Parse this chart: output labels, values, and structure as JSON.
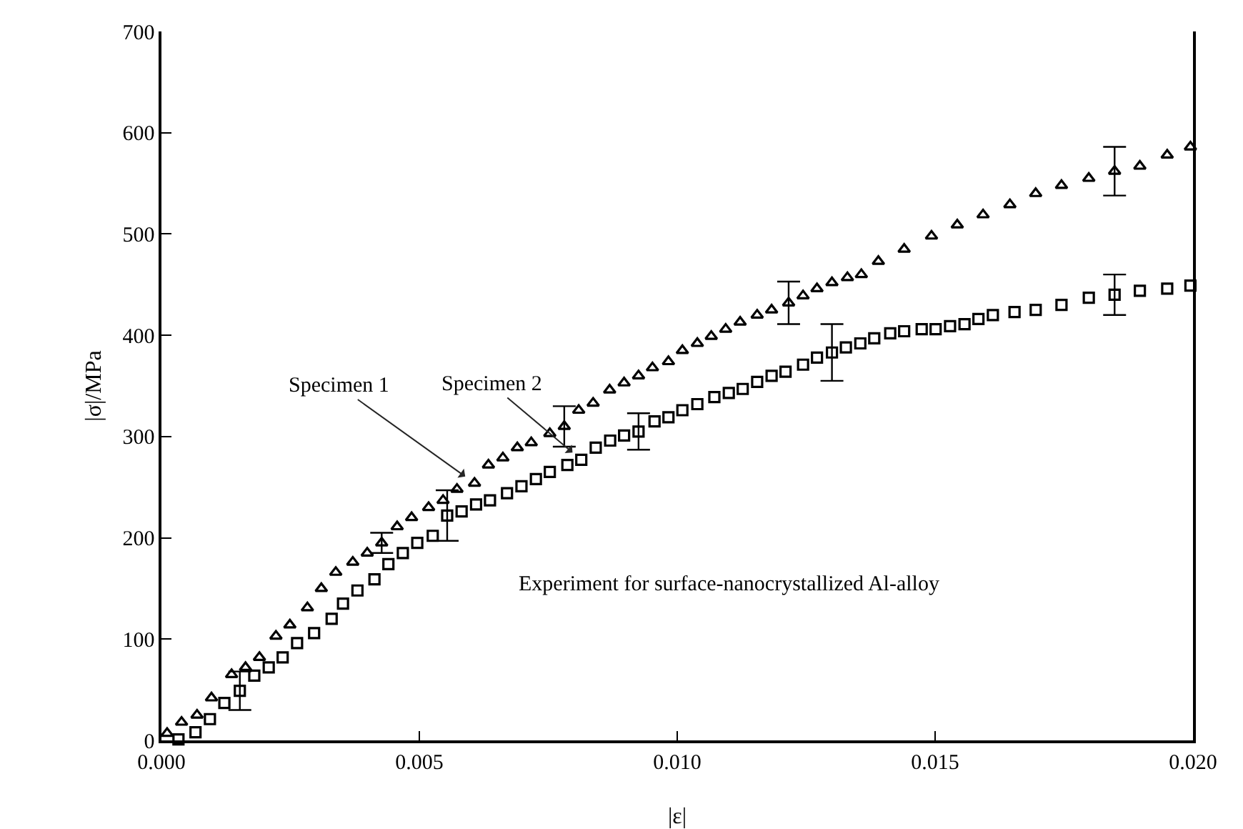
{
  "chart_data": {
    "type": "scatter",
    "xlabel": "|ε|",
    "ylabel": "|σ|/MPa",
    "annotations": [
      "Experiment for surface-nanocrystallized Al-alloy"
    ],
    "xlim": [
      0,
      0.02
    ],
    "xticks": [
      {
        "value": 0,
        "label": "0.000"
      },
      {
        "value": 0.005,
        "label": "0.005"
      },
      {
        "value": 0.01,
        "label": "0.010"
      },
      {
        "value": 0.015,
        "label": "0.015"
      },
      {
        "value": 0.02,
        "label": "0.020"
      }
    ],
    "ylim": [
      0,
      700
    ],
    "yticks": [
      0,
      100,
      200,
      300,
      400,
      500,
      600,
      700
    ],
    "grid": false,
    "legend": false,
    "series": [
      {
        "name": "Specimen 1",
        "color": "#000000",
        "marker": "triangle",
        "x": [
          0.00011,
          0.00039,
          0.00069,
          0.00097,
          0.00136,
          0.00163,
          0.0019,
          0.00222,
          0.00249,
          0.00283,
          0.0031,
          0.00338,
          0.00371,
          0.00399,
          0.00427,
          0.00457,
          0.00485,
          0.00518,
          0.00546,
          0.00573,
          0.00607,
          0.00634,
          0.00662,
          0.0069,
          0.00717,
          0.00753,
          0.00781,
          0.00809,
          0.00837,
          0.00869,
          0.00897,
          0.00925,
          0.00952,
          0.00983,
          0.0101,
          0.01039,
          0.01066,
          0.01094,
          0.01122,
          0.01155,
          0.01183,
          0.01216,
          0.01244,
          0.01271,
          0.013,
          0.0133,
          0.01357,
          0.0139,
          0.0144,
          0.01493,
          0.01543,
          0.01593,
          0.01645,
          0.01695,
          0.01745,
          0.01798,
          0.01848,
          0.01897,
          0.0195,
          0.01995
        ],
        "values": [
          7,
          18,
          25,
          42,
          65,
          72,
          82,
          103,
          114,
          131,
          150,
          166,
          176,
          185,
          195,
          211,
          220,
          230,
          237,
          248,
          254,
          272,
          279,
          289,
          294,
          303,
          310,
          326,
          333,
          346,
          353,
          360,
          368,
          374,
          385,
          392,
          399,
          406,
          413,
          420,
          425,
          432,
          439,
          446,
          452,
          457,
          460,
          473,
          485,
          498,
          509,
          519,
          529,
          540,
          548,
          555,
          562,
          567,
          578,
          586
        ],
        "errors": [
          null,
          null,
          null,
          null,
          null,
          null,
          null,
          null,
          null,
          null,
          null,
          null,
          null,
          null,
          10,
          null,
          null,
          null,
          null,
          null,
          null,
          null,
          null,
          null,
          null,
          null,
          20,
          null,
          null,
          null,
          null,
          null,
          null,
          null,
          null,
          null,
          null,
          null,
          null,
          null,
          null,
          21,
          null,
          null,
          null,
          null,
          null,
          null,
          null,
          null,
          null,
          null,
          null,
          null,
          null,
          null,
          24,
          null,
          null,
          null
        ]
      },
      {
        "name": "Specimen 2",
        "color": "#000000",
        "marker": "square",
        "x": [
          0.00033,
          0.00066,
          0.00094,
          0.00122,
          0.00152,
          0.0018,
          0.00208,
          0.00235,
          0.00263,
          0.00296,
          0.0033,
          0.00352,
          0.0038,
          0.00413,
          0.0044,
          0.00468,
          0.00496,
          0.00526,
          0.00554,
          0.00582,
          0.0061,
          0.00637,
          0.0067,
          0.00698,
          0.00726,
          0.00753,
          0.00787,
          0.00814,
          0.00842,
          0.0087,
          0.00897,
          0.00925,
          0.00956,
          0.00983,
          0.0101,
          0.01039,
          0.01072,
          0.011,
          0.01127,
          0.01155,
          0.01183,
          0.0121,
          0.01244,
          0.01271,
          0.013,
          0.01327,
          0.01355,
          0.01382,
          0.01413,
          0.0144,
          0.01474,
          0.01501,
          0.01529,
          0.01557,
          0.01584,
          0.01612,
          0.01654,
          0.01695,
          0.01745,
          0.01798,
          0.01848,
          0.01897,
          0.0195,
          0.01995
        ],
        "values": [
          1,
          8,
          21,
          37,
          49,
          64,
          72,
          82,
          96,
          106,
          120,
          135,
          148,
          159,
          174,
          185,
          195,
          202,
          222,
          226,
          233,
          237,
          244,
          251,
          258,
          265,
          272,
          277,
          289,
          296,
          301,
          305,
          315,
          319,
          326,
          332,
          339,
          343,
          347,
          354,
          360,
          364,
          371,
          378,
          383,
          388,
          392,
          397,
          402,
          404,
          406,
          406,
          409,
          411,
          416,
          420,
          423,
          425,
          430,
          437,
          440,
          444,
          446,
          449
        ],
        "errors": [
          null,
          null,
          null,
          null,
          19,
          null,
          null,
          null,
          null,
          null,
          null,
          null,
          null,
          null,
          null,
          null,
          null,
          null,
          25,
          null,
          null,
          null,
          null,
          null,
          null,
          null,
          null,
          null,
          null,
          null,
          null,
          18,
          null,
          null,
          null,
          null,
          null,
          null,
          null,
          null,
          null,
          null,
          null,
          null,
          28,
          null,
          null,
          null,
          null,
          null,
          null,
          null,
          null,
          null,
          null,
          null,
          null,
          null,
          null,
          null,
          20,
          null,
          null,
          null
        ]
      }
    ]
  }
}
